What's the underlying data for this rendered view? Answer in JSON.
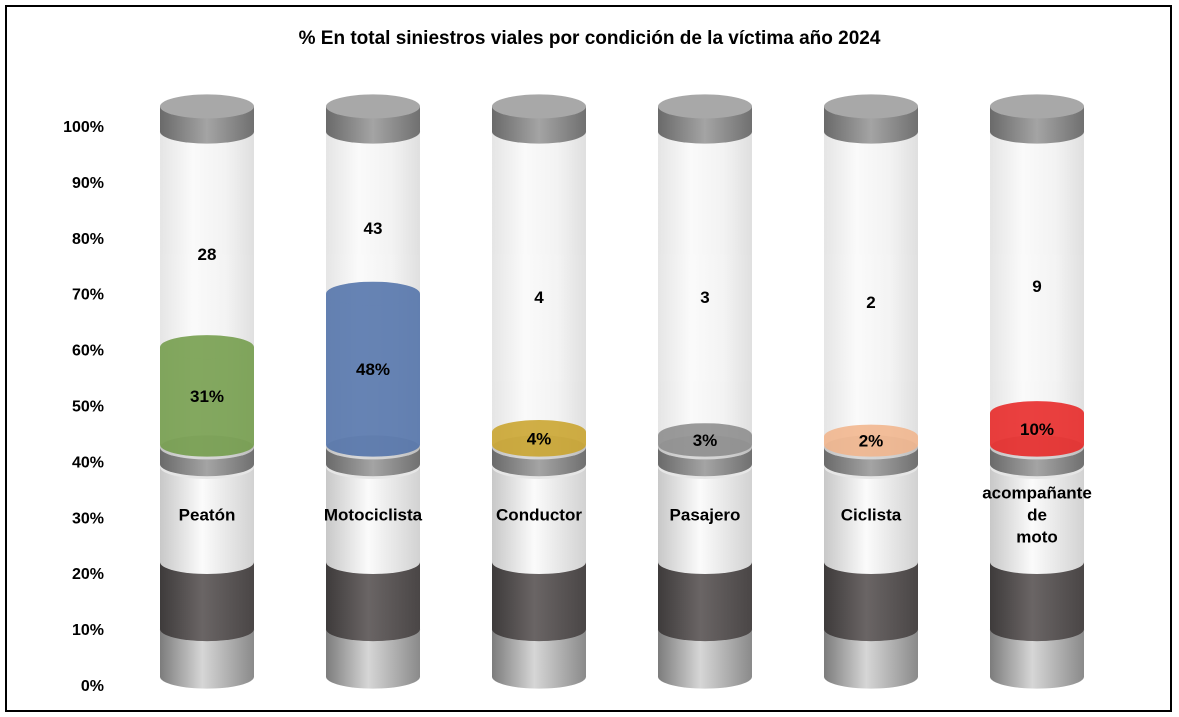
{
  "chart_data": {
    "type": "bar",
    "title": "% En total siniestros viales por condición de la víctima año 2024",
    "categories": [
      "Peatón",
      "Motociclista",
      "Conductor",
      "Pasajero",
      "Ciclista",
      "acompañante de moto"
    ],
    "percent_values": [
      31,
      48,
      4,
      3,
      2,
      10
    ],
    "percent_labels": [
      "31%",
      "48%",
      "4%",
      "3%",
      "2%",
      "10%"
    ],
    "count_values": [
      28,
      43,
      4,
      3,
      2,
      9
    ],
    "count_labels": [
      "28",
      "43",
      "4",
      "3",
      "2",
      "9"
    ],
    "y_ticks": [
      "0%",
      "10%",
      "20%",
      "30%",
      "40%",
      "50%",
      "60%",
      "70%",
      "80%",
      "90%",
      "100%"
    ],
    "ylim": [
      0,
      100
    ],
    "colors": [
      "#6f9a45",
      "#4d6fa8",
      "#c9a227",
      "#8a8a8a",
      "#f2b48a",
      "#e8201f"
    ],
    "grid": false,
    "legend": "none"
  }
}
